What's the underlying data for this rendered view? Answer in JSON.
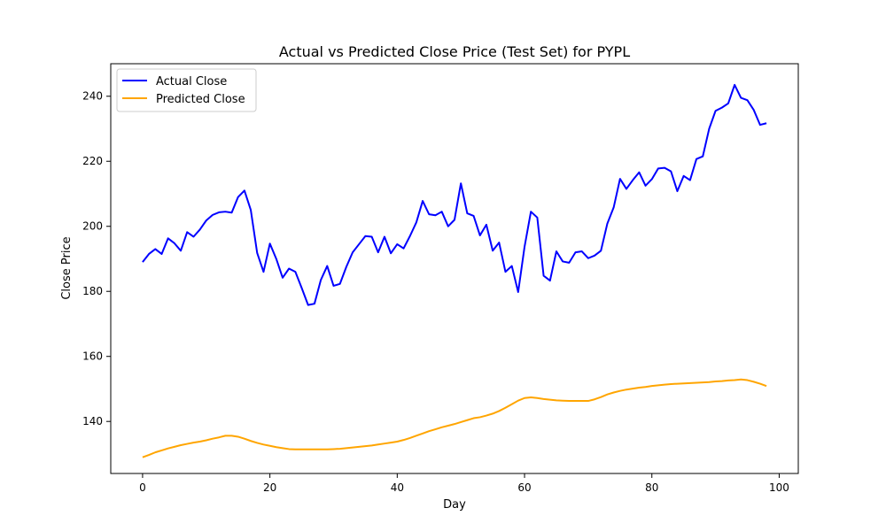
{
  "chart_data": {
    "type": "line",
    "title": "Actual vs Predicted Close Price (Test Set) for PYPL",
    "xlabel": "Day",
    "ylabel": "Close Price",
    "xlim": [
      -5,
      103
    ],
    "ylim": [
      124,
      250
    ],
    "xticks": [
      0,
      20,
      40,
      60,
      80,
      100
    ],
    "yticks": [
      140,
      160,
      180,
      200,
      220,
      240
    ],
    "grid": false,
    "legend_position": "top-left",
    "series": [
      {
        "name": "Actual Close",
        "color": "#0000ff",
        "x": [
          0,
          1,
          2,
          3,
          4,
          5,
          6,
          7,
          8,
          9,
          10,
          11,
          12,
          13,
          14,
          15,
          16,
          17,
          18,
          19,
          20,
          21,
          22,
          23,
          24,
          25,
          26,
          27,
          28,
          29,
          30,
          31,
          32,
          33,
          34,
          35,
          36,
          37,
          38,
          39,
          40,
          41,
          42,
          43,
          44,
          45,
          46,
          47,
          48,
          49,
          50,
          51,
          52,
          53,
          54,
          55,
          56,
          57,
          58,
          59,
          60,
          61,
          62,
          63,
          64,
          65,
          66,
          67,
          68,
          69,
          70,
          71,
          72,
          73,
          74,
          75,
          76,
          77,
          78,
          79,
          80,
          81,
          82,
          83,
          84,
          85,
          86,
          87,
          88,
          89,
          90,
          91,
          92,
          93,
          94,
          95,
          96,
          97,
          98
        ],
        "y": [
          189,
          191.5,
          193,
          191.5,
          196.3,
          194.8,
          192.5,
          198.2,
          196.8,
          199,
          201.8,
          203.5,
          204.3,
          204.5,
          204.2,
          209,
          211,
          205,
          191.8,
          186,
          194.7,
          190,
          184.2,
          187,
          186,
          181,
          175.8,
          176.2,
          183.5,
          187.8,
          181.7,
          182.3,
          187.5,
          192,
          194.5,
          197,
          196.8,
          192,
          196.8,
          191.7,
          194.5,
          193.2,
          197,
          201.2,
          207.8,
          203.7,
          203.4,
          204.5,
          200,
          202,
          213.2,
          204,
          203.2,
          197.2,
          200.5,
          192.5,
          195,
          186,
          187.8,
          179.8,
          193.7,
          204.5,
          202.7,
          184.8,
          183.3,
          192.3,
          189.2,
          188.8,
          192,
          192.3,
          190.2,
          191,
          192.5,
          200.8,
          205.8,
          214.6,
          211.5,
          214.2,
          216.6,
          212.5,
          214.5,
          217.8,
          218,
          216.9,
          210.8,
          215.5,
          214.2,
          220.7,
          221.5,
          230,
          235.5,
          236.5,
          237.8,
          243.5,
          239.5,
          238.8,
          235.8,
          231.2,
          231.7
        ]
      },
      {
        "name": "Predicted Close",
        "color": "#ffa500",
        "x": [
          0,
          1,
          2,
          3,
          4,
          5,
          6,
          7,
          8,
          9,
          10,
          11,
          12,
          13,
          14,
          15,
          16,
          17,
          18,
          19,
          20,
          21,
          22,
          23,
          24,
          25,
          26,
          27,
          28,
          29,
          30,
          31,
          32,
          33,
          34,
          35,
          36,
          37,
          38,
          39,
          40,
          41,
          42,
          43,
          44,
          45,
          46,
          47,
          48,
          49,
          50,
          51,
          52,
          53,
          54,
          55,
          56,
          57,
          58,
          59,
          60,
          61,
          62,
          63,
          64,
          65,
          66,
          67,
          68,
          69,
          70,
          71,
          72,
          73,
          74,
          75,
          76,
          77,
          78,
          79,
          80,
          81,
          82,
          83,
          84,
          85,
          86,
          87,
          88,
          89,
          90,
          91,
          92,
          93,
          94,
          95,
          96,
          97,
          98
        ],
        "y": [
          129,
          129.7,
          130.5,
          131.1,
          131.7,
          132.2,
          132.7,
          133.1,
          133.5,
          133.8,
          134.2,
          134.7,
          135.1,
          135.6,
          135.6,
          135.3,
          134.7,
          134,
          133.4,
          132.9,
          132.5,
          132.1,
          131.8,
          131.5,
          131.4,
          131.4,
          131.4,
          131.4,
          131.4,
          131.4,
          131.5,
          131.6,
          131.8,
          132,
          132.2,
          132.4,
          132.6,
          132.9,
          133.2,
          133.5,
          133.8,
          134.3,
          134.9,
          135.6,
          136.3,
          137,
          137.6,
          138.2,
          138.7,
          139.2,
          139.8,
          140.4,
          141,
          141.3,
          141.8,
          142.4,
          143.2,
          144.2,
          145.3,
          146.4,
          147.2,
          147.4,
          147.2,
          146.9,
          146.7,
          146.5,
          146.4,
          146.3,
          146.3,
          146.3,
          146.3,
          146.8,
          147.5,
          148.3,
          148.9,
          149.4,
          149.8,
          150.1,
          150.4,
          150.6,
          150.9,
          151.1,
          151.3,
          151.5,
          151.6,
          151.7,
          151.8,
          151.9,
          152,
          152.1,
          152.3,
          152.4,
          152.6,
          152.7,
          152.9,
          152.7,
          152.2,
          151.6,
          150.9
        ]
      }
    ]
  }
}
